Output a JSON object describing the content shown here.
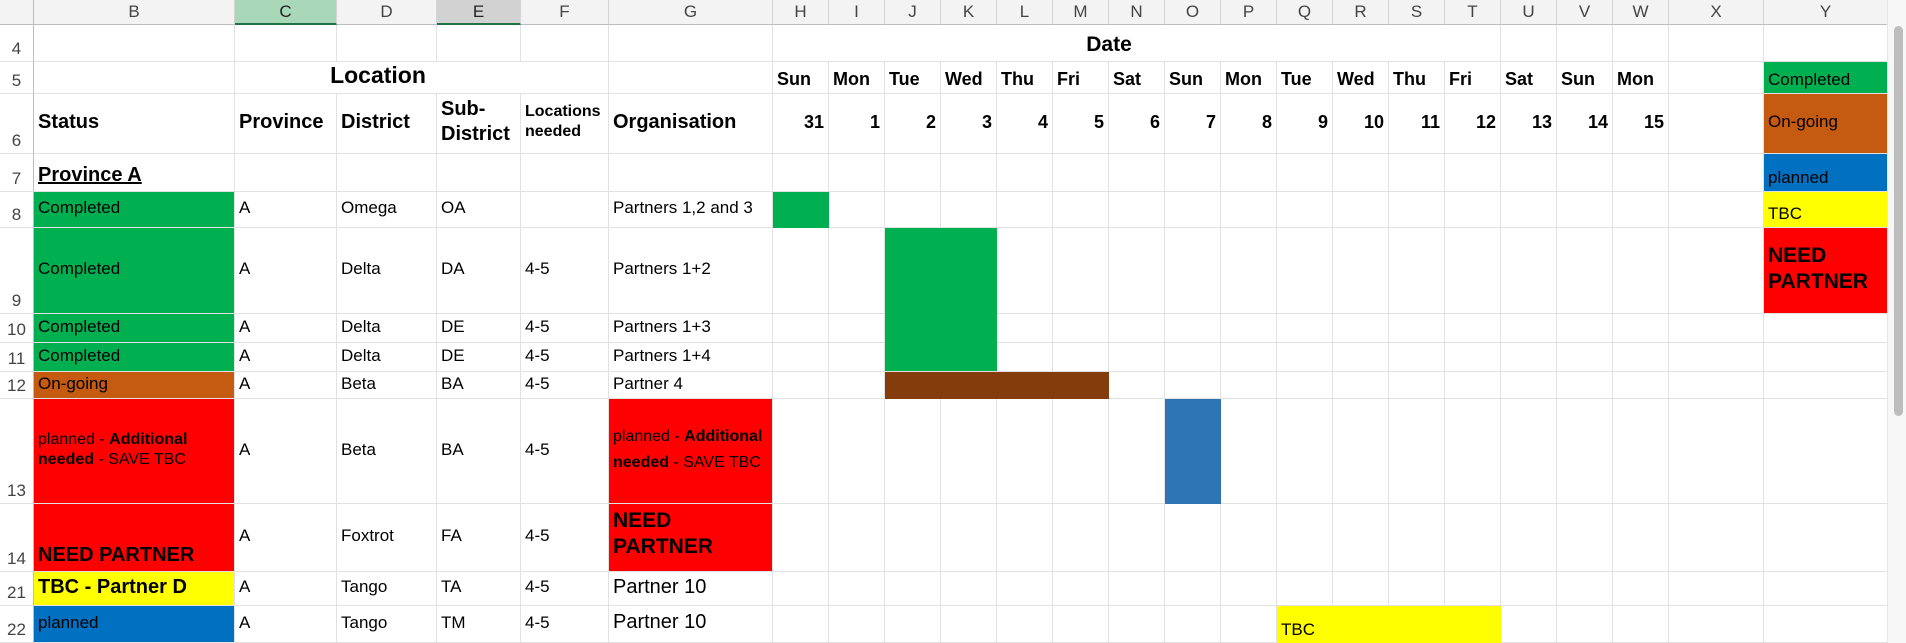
{
  "columns": [
    "B",
    "C",
    "D",
    "E",
    "F",
    "G",
    "H",
    "I",
    "J",
    "K",
    "L",
    "M",
    "N",
    "O",
    "P",
    "Q",
    "R",
    "S",
    "T",
    "U",
    "V",
    "W",
    "X",
    "Y"
  ],
  "rows": [
    "4",
    "5",
    "6",
    "7",
    "8",
    "9",
    "10",
    "11",
    "12",
    "13",
    "14",
    "21",
    "22"
  ],
  "header": {
    "date": "Date",
    "location": "Location",
    "status": "Status",
    "province": "Province",
    "district": "District",
    "sub_district": "Sub-District",
    "locations_needed": "Locations needed",
    "organisation": "Organisation",
    "days": [
      "Sun",
      "Mon",
      "Tue",
      "Wed",
      "Thu",
      "Fri",
      "Sat",
      "Sun",
      "Mon",
      "Tue",
      "Wed",
      "Thu",
      "Fri",
      "Sat",
      "Sun",
      "Mon"
    ],
    "dates": [
      "31",
      "1",
      "2",
      "3",
      "4",
      "5",
      "6",
      "7",
      "8",
      "9",
      "10",
      "11",
      "12",
      "13",
      "14",
      "15"
    ]
  },
  "section_title": "Province A",
  "table": [
    {
      "status": "Completed",
      "province": "A",
      "district": "Omega",
      "sub": "OA",
      "needed": "",
      "org": "Partners 1,2 and 3"
    },
    {
      "status": "Completed",
      "province": "A",
      "district": "Delta",
      "sub": "DA",
      "needed": "4-5",
      "org": "Partners 1+2"
    },
    {
      "status": "Completed",
      "province": "A",
      "district": "Delta",
      "sub": "DE",
      "needed": "4-5",
      "org": "Partners 1+3"
    },
    {
      "status": "Completed",
      "province": "A",
      "district": "Delta",
      "sub": "DE",
      "needed": "4-5",
      "org": "Partners 1+4"
    },
    {
      "status": "On-going",
      "province": "A",
      "district": "Beta",
      "sub": "BA",
      "needed": "4-5",
      "org": "Partner 4"
    },
    {
      "status_plain1": "planned - ",
      "status_bold": "Additional needed",
      "status_plain2": " - SAVE TBC",
      "province": "A",
      "district": "Beta",
      "sub": "BA",
      "needed": "4-5",
      "org_plain1": "planned - ",
      "org_bold": "Additional needed",
      "org_plain2": " - SAVE TBC"
    },
    {
      "status": "NEED PARTNER",
      "province": "A",
      "district": "Foxtrot",
      "sub": "FA",
      "needed": "4-5",
      "org": "NEED PARTNER"
    },
    {
      "status": "TBC - Partner D",
      "province": "A",
      "district": "Tango",
      "sub": "TA",
      "needed": "4-5",
      "org": "Partner 10"
    },
    {
      "status": "planned",
      "province": "A",
      "district": "Tango",
      "sub": "TM",
      "needed": "4-5",
      "org": "Partner 10"
    }
  ],
  "gantt_tbc_label": "TBC",
  "legend": [
    "Completed",
    "On-going",
    "planned",
    "TBC",
    "NEED PARTNER"
  ],
  "colors": {
    "completed": "#00b050",
    "ongoing": "#c55a11",
    "ongoing_bar": "#843c0c",
    "planned": "#0070c0",
    "planned_bar": "#2e75b6",
    "tbc": "#ffff00",
    "need": "#ff0000"
  }
}
